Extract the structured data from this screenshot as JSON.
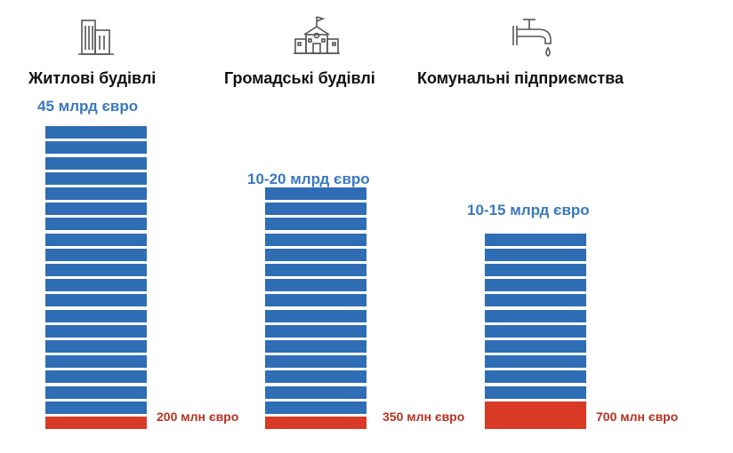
{
  "colors": {
    "blue": "#2f6db5",
    "red": "#d93a26",
    "blue_text": "#3a78bf",
    "red_text": "#b8321f",
    "icon_stroke": "#555555"
  },
  "chart_data": {
    "type": "bar",
    "categories": [
      "Житлові будівлі",
      "Громадські будівлі",
      "Комунальні підприємства"
    ],
    "series": [
      {
        "values": [
          45,
          20,
          15
        ]
      },
      {
        "values": [
          200,
          350,
          700
        ]
      }
    ],
    "icons": [
      "residential-buildings-icon",
      "school-building-icon",
      "water-tap-icon"
    ],
    "labels": {
      "totals": [
        "45 млрд євро",
        "10-20 млрд євро",
        "10-15 млрд євро"
      ],
      "bases": [
        "200 млн євро",
        "350 млн євро",
        "700 млн євро"
      ]
    },
    "stack_segments": [
      19,
      15,
      11
    ],
    "base_heights": [
      1,
      1,
      2
    ]
  }
}
